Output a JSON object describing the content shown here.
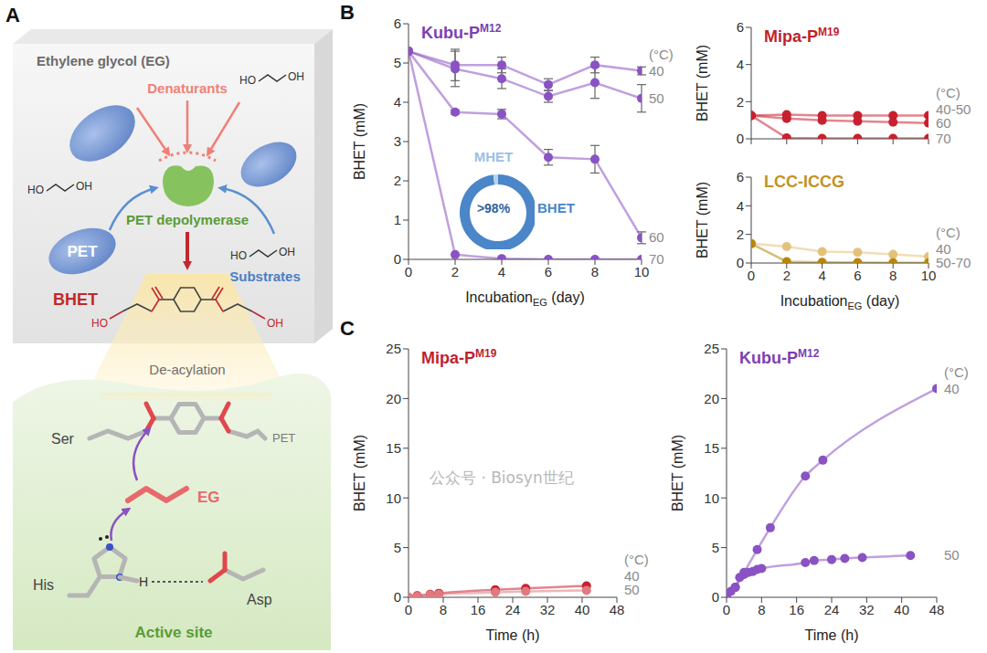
{
  "panel_labels": [
    "A",
    "B",
    "C"
  ],
  "watermark": "公众号 · Biosyn世纪",
  "diagram": {
    "title": "Ethylene glycol (EG)",
    "denaturants": "Denaturants",
    "enzyme": "PET depolymerase",
    "polymer": "PET",
    "substrates": "Substrates",
    "product": "BHET",
    "eg_ends": [
      "HO",
      "OH"
    ],
    "step": "De-acylation",
    "serine": "Ser",
    "chain": "PET",
    "nucleophile": "EG",
    "histidine": "His",
    "hydrogen": "H",
    "aspartate": "Asp",
    "region": "Active site"
  },
  "chart_data": [
    {
      "type": "line",
      "title": {
        "text": "Kubu-P",
        "superscript": "M12"
      },
      "color": "#7b3fb3",
      "xlabel": {
        "text": "Incubation",
        "subscript": "EG",
        "suffix": " (day)"
      },
      "ylabel": "BHET (mM)",
      "x": [
        0,
        2,
        4,
        6,
        8,
        10
      ],
      "xlim": [
        0,
        10
      ],
      "xticks": [
        0,
        2,
        4,
        6,
        8,
        10
      ],
      "ylim": [
        0,
        6
      ],
      "yticks": [
        0,
        1,
        2,
        3,
        4,
        5,
        6
      ],
      "grid": false,
      "marker": "circle",
      "line_style": "solid",
      "label_title": "(°C)",
      "series": [
        {
          "name": "40",
          "color": "#8a52c2",
          "values": [
            5.3,
            4.95,
            4.95,
            4.45,
            4.95,
            4.8
          ],
          "errors": [
            0,
            0.4,
            0.2,
            0.15,
            0.2,
            0.1
          ]
        },
        {
          "name": "50",
          "color": "#8a52c2",
          "values": [
            5.3,
            4.85,
            4.6,
            4.15,
            4.5,
            4.1
          ],
          "errors": [
            0,
            0.45,
            0.25,
            0.15,
            0.4,
            0.35
          ]
        },
        {
          "name": "60",
          "color": "#8a52c2",
          "values": [
            5.3,
            3.75,
            3.7,
            2.6,
            2.55,
            0.55
          ],
          "errors": [
            0,
            0.05,
            0.12,
            0.2,
            0.35,
            0.15
          ]
        },
        {
          "name": "70",
          "color": "#8a52c2",
          "values": [
            5.3,
            0.12,
            0.02,
            0,
            0,
            0
          ]
        }
      ],
      "inset": {
        "type": "pie",
        "labels": [
          "BHET",
          "MHET"
        ],
        "values": [
          98,
          2
        ],
        "colors": [
          "#4a86c8",
          "#b5d3ee"
        ],
        "center_label": ">98%"
      }
    },
    {
      "type": "line",
      "title": {
        "text": "Mipa-P",
        "superscript": "M19"
      },
      "color": "#c01f2f",
      "ylabel": "BHET (mM)",
      "x": [
        0,
        2,
        4,
        6,
        8,
        10
      ],
      "xlim": [
        0,
        10
      ],
      "xticks": [
        0,
        2,
        4,
        6,
        8,
        10
      ],
      "ylim": [
        0,
        6
      ],
      "yticks": [
        0,
        2,
        4,
        6
      ],
      "grid": false,
      "tick_labels": "y",
      "marker": "circle",
      "line_style": "solid",
      "label_title": "(°C)",
      "series": [
        {
          "name": "40-50",
          "color": "#c8202f",
          "values": [
            1.25,
            1.3,
            1.25,
            1.25,
            1.25,
            1.25
          ]
        },
        {
          "name": "60",
          "color": "#c8202f",
          "values": [
            1.25,
            1.1,
            1.0,
            0.95,
            0.9,
            0.85
          ]
        },
        {
          "name": "70",
          "color": "#c8202f",
          "values": [
            1.25,
            0.05,
            0.02,
            0.02,
            0.02,
            0.02
          ]
        }
      ]
    },
    {
      "type": "line",
      "title": {
        "text": "LCC-ICCG"
      },
      "color": "#c4911f",
      "xlabel": {
        "text": "Incubation",
        "subscript": "EG",
        "suffix": " (day)"
      },
      "ylabel": "BHET (mM)",
      "x": [
        0,
        2,
        4,
        6,
        8,
        10
      ],
      "xlim": [
        0,
        10
      ],
      "xticks": [
        0,
        2,
        4,
        6,
        8,
        10
      ],
      "ylim": [
        0,
        6
      ],
      "yticks": [
        0,
        2,
        4,
        6
      ],
      "grid": false,
      "marker": "circle",
      "line_style": "solid",
      "label_title": "(°C)",
      "series": [
        {
          "name": "40",
          "color": "#e3c27c",
          "values": [
            1.35,
            1.15,
            0.8,
            0.75,
            0.6,
            0.45
          ]
        },
        {
          "name": "50-70",
          "color": "#b8860b",
          "values": [
            1.35,
            0.1,
            0.05,
            0.03,
            0.02,
            0.02
          ]
        }
      ]
    },
    {
      "type": "line",
      "title": {
        "text": "Mipa-P",
        "superscript": "M19"
      },
      "color": "#c01f2f",
      "xlabel": {
        "text": "Time (h)"
      },
      "ylabel": "BHET (mM)",
      "xlim": [
        0,
        48
      ],
      "xticks": [
        0,
        8,
        16,
        24,
        32,
        40,
        48
      ],
      "ylim": [
        0,
        25
      ],
      "yticks": [
        0,
        5,
        10,
        15,
        20,
        25
      ],
      "grid": false,
      "marker": "circle",
      "line_style": "smooth",
      "label_title": "(°C)",
      "series": [
        {
          "name": "40",
          "color": "#c8202f",
          "x": [
            0,
            2,
            5,
            7,
            20,
            27,
            41
          ],
          "values": [
            0,
            0.15,
            0.3,
            0.4,
            0.75,
            0.9,
            1.15
          ]
        },
        {
          "name": "50",
          "color": "#e07a80",
          "x": [
            0,
            2,
            5,
            7,
            20,
            27,
            41
          ],
          "values": [
            0,
            0.1,
            0.25,
            0.3,
            0.5,
            0.6,
            0.7
          ]
        }
      ]
    },
    {
      "type": "line",
      "title": {
        "text": "Kubu-P",
        "superscript": "M12"
      },
      "color": "#7b3fb3",
      "xlabel": {
        "text": "Time (h)"
      },
      "ylabel": "BHET (mM)",
      "xlim": [
        0,
        48
      ],
      "xticks": [
        0,
        8,
        16,
        24,
        32,
        40,
        48
      ],
      "ylim": [
        0,
        25
      ],
      "yticks": [
        0,
        5,
        10,
        15,
        20,
        25
      ],
      "grid": false,
      "marker": "circle",
      "line_style": "smooth",
      "label_title": "(°C)",
      "series": [
        {
          "name": "40",
          "color": "#8a52c2",
          "x": [
            0,
            2,
            4,
            7,
            10,
            18,
            22,
            48
          ],
          "values": [
            0,
            1.0,
            2.5,
            4.8,
            7.0,
            12.2,
            13.8,
            21.0
          ]
        },
        {
          "name": "50",
          "color": "#8a52c2",
          "x": [
            0,
            1,
            2,
            3,
            4,
            5,
            6,
            7,
            8,
            18,
            20,
            24,
            27,
            31,
            42
          ],
          "values": [
            0,
            0.6,
            1.0,
            2.0,
            2.3,
            2.5,
            2.6,
            2.8,
            2.9,
            3.5,
            3.7,
            3.8,
            3.9,
            4.0,
            4.2
          ]
        }
      ]
    }
  ]
}
